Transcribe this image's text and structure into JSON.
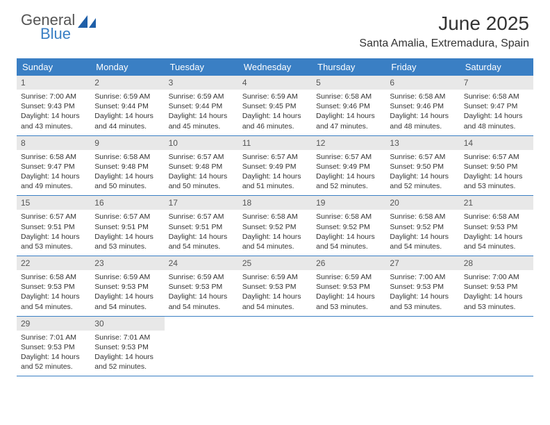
{
  "brand": {
    "line1": "General",
    "line2": "Blue",
    "logo_color": "#1f5fa8"
  },
  "title": "June 2025",
  "location": "Santa Amalia, Extremadura, Spain",
  "colors": {
    "header_bg": "#3a7fc4",
    "header_text": "#ffffff",
    "daynum_bg": "#e8e8e8",
    "text": "#333333",
    "rule": "#3a7fc4"
  },
  "dow": [
    "Sunday",
    "Monday",
    "Tuesday",
    "Wednesday",
    "Thursday",
    "Friday",
    "Saturday"
  ],
  "days": [
    {
      "n": "1",
      "sr": "7:00 AM",
      "ss": "9:43 PM",
      "dl": "14 hours and 43 minutes."
    },
    {
      "n": "2",
      "sr": "6:59 AM",
      "ss": "9:44 PM",
      "dl": "14 hours and 44 minutes."
    },
    {
      "n": "3",
      "sr": "6:59 AM",
      "ss": "9:44 PM",
      "dl": "14 hours and 45 minutes."
    },
    {
      "n": "4",
      "sr": "6:59 AM",
      "ss": "9:45 PM",
      "dl": "14 hours and 46 minutes."
    },
    {
      "n": "5",
      "sr": "6:58 AM",
      "ss": "9:46 PM",
      "dl": "14 hours and 47 minutes."
    },
    {
      "n": "6",
      "sr": "6:58 AM",
      "ss": "9:46 PM",
      "dl": "14 hours and 48 minutes."
    },
    {
      "n": "7",
      "sr": "6:58 AM",
      "ss": "9:47 PM",
      "dl": "14 hours and 48 minutes."
    },
    {
      "n": "8",
      "sr": "6:58 AM",
      "ss": "9:47 PM",
      "dl": "14 hours and 49 minutes."
    },
    {
      "n": "9",
      "sr": "6:58 AM",
      "ss": "9:48 PM",
      "dl": "14 hours and 50 minutes."
    },
    {
      "n": "10",
      "sr": "6:57 AM",
      "ss": "9:48 PM",
      "dl": "14 hours and 50 minutes."
    },
    {
      "n": "11",
      "sr": "6:57 AM",
      "ss": "9:49 PM",
      "dl": "14 hours and 51 minutes."
    },
    {
      "n": "12",
      "sr": "6:57 AM",
      "ss": "9:49 PM",
      "dl": "14 hours and 52 minutes."
    },
    {
      "n": "13",
      "sr": "6:57 AM",
      "ss": "9:50 PM",
      "dl": "14 hours and 52 minutes."
    },
    {
      "n": "14",
      "sr": "6:57 AM",
      "ss": "9:50 PM",
      "dl": "14 hours and 53 minutes."
    },
    {
      "n": "15",
      "sr": "6:57 AM",
      "ss": "9:51 PM",
      "dl": "14 hours and 53 minutes."
    },
    {
      "n": "16",
      "sr": "6:57 AM",
      "ss": "9:51 PM",
      "dl": "14 hours and 53 minutes."
    },
    {
      "n": "17",
      "sr": "6:57 AM",
      "ss": "9:51 PM",
      "dl": "14 hours and 54 minutes."
    },
    {
      "n": "18",
      "sr": "6:58 AM",
      "ss": "9:52 PM",
      "dl": "14 hours and 54 minutes."
    },
    {
      "n": "19",
      "sr": "6:58 AM",
      "ss": "9:52 PM",
      "dl": "14 hours and 54 minutes."
    },
    {
      "n": "20",
      "sr": "6:58 AM",
      "ss": "9:52 PM",
      "dl": "14 hours and 54 minutes."
    },
    {
      "n": "21",
      "sr": "6:58 AM",
      "ss": "9:53 PM",
      "dl": "14 hours and 54 minutes."
    },
    {
      "n": "22",
      "sr": "6:58 AM",
      "ss": "9:53 PM",
      "dl": "14 hours and 54 minutes."
    },
    {
      "n": "23",
      "sr": "6:59 AM",
      "ss": "9:53 PM",
      "dl": "14 hours and 54 minutes."
    },
    {
      "n": "24",
      "sr": "6:59 AM",
      "ss": "9:53 PM",
      "dl": "14 hours and 54 minutes."
    },
    {
      "n": "25",
      "sr": "6:59 AM",
      "ss": "9:53 PM",
      "dl": "14 hours and 54 minutes."
    },
    {
      "n": "26",
      "sr": "6:59 AM",
      "ss": "9:53 PM",
      "dl": "14 hours and 53 minutes."
    },
    {
      "n": "27",
      "sr": "7:00 AM",
      "ss": "9:53 PM",
      "dl": "14 hours and 53 minutes."
    },
    {
      "n": "28",
      "sr": "7:00 AM",
      "ss": "9:53 PM",
      "dl": "14 hours and 53 minutes."
    },
    {
      "n": "29",
      "sr": "7:01 AM",
      "ss": "9:53 PM",
      "dl": "14 hours and 52 minutes."
    },
    {
      "n": "30",
      "sr": "7:01 AM",
      "ss": "9:53 PM",
      "dl": "14 hours and 52 minutes."
    }
  ],
  "labels": {
    "sunrise": "Sunrise:",
    "sunset": "Sunset:",
    "daylight": "Daylight:"
  },
  "layout": {
    "first_day_offset": 0,
    "total_cells": 35
  }
}
